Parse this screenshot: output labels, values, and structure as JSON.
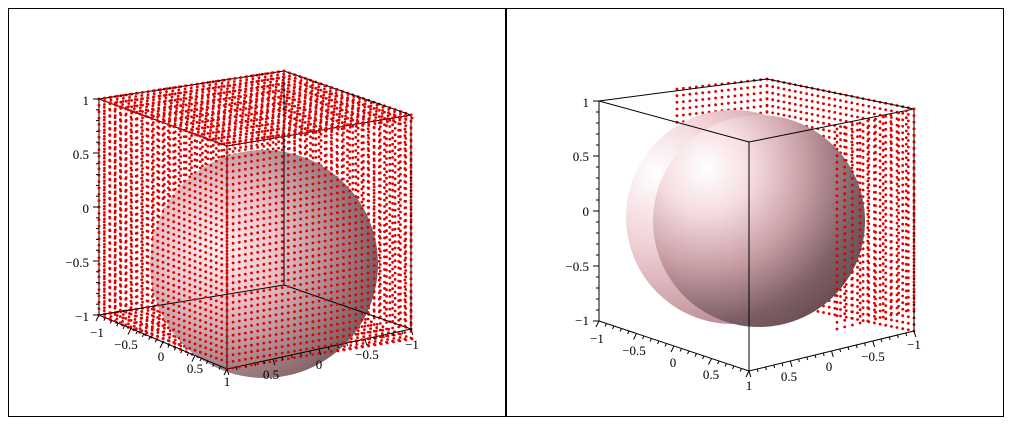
{
  "plots": [
    {
      "id": "left",
      "description": "sphere inside unit cube, cube surface dots",
      "z_ticks": [
        "1",
        "0.5",
        "0",
        "−0.5",
        "−1"
      ],
      "x_ticks": [
        "−1",
        "−0.5",
        "0",
        "0.5",
        "1"
      ],
      "y_ticks": [
        "1",
        "0.5",
        "0",
        "−0.5",
        "−1"
      ],
      "point_faces": [
        "back",
        "left",
        "top",
        "front",
        "right",
        "bottom"
      ]
    },
    {
      "id": "right",
      "description": "sphere inside unit cube, partial dots on back faces",
      "z_ticks": [
        "1",
        "0.5",
        "0",
        "−0.5",
        "−1"
      ],
      "x_ticks": [
        "−1",
        "−0.5",
        "0",
        "0.5",
        "1"
      ],
      "y_ticks": [
        "1",
        "0.5",
        "0",
        "−0.5",
        "−1"
      ],
      "point_faces": [
        "back",
        "top-back"
      ]
    }
  ],
  "colors": {
    "points": "#e00000",
    "sphere_light": "#ffeef0",
    "sphere_mid": "#d9a3ab",
    "sphere_dark": "#7d5f65",
    "axes": "#000000"
  }
}
